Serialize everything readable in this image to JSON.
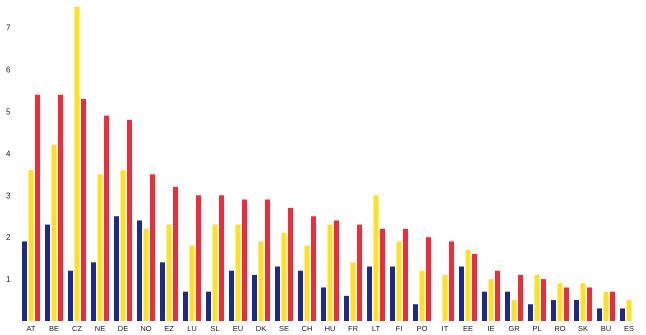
{
  "chart_data": {
    "type": "bar",
    "title": "",
    "xlabel": "",
    "ylabel": "",
    "ylim": [
      0,
      7.5
    ],
    "yticks": [
      1,
      2,
      3,
      4,
      5,
      6,
      7
    ],
    "grid": false,
    "categories": [
      "AT",
      "BE",
      "CZ",
      "NE",
      "DE",
      "NO",
      "EZ",
      "LU",
      "SL",
      "EU",
      "DK",
      "SE",
      "CH",
      "HU",
      "FR",
      "LT",
      "FI",
      "PO",
      "IT",
      "EE",
      "IE",
      "GR",
      "PL",
      "RO",
      "SK",
      "BU",
      "ES"
    ],
    "series": [
      {
        "color": "#1b2a8c",
        "values": [
          1.9,
          2.3,
          1.2,
          1.4,
          2.5,
          2.4,
          1.4,
          0.7,
          0.7,
          1.2,
          1.1,
          1.3,
          1.2,
          0.8,
          0.6,
          1.3,
          1.3,
          0.4,
          0.0,
          1.3,
          0.7,
          0.7,
          0.4,
          0.5,
          0.5,
          0.3,
          0.3
        ]
      },
      {
        "color": "#ffe21f",
        "values": [
          3.6,
          4.2,
          7.5,
          3.5,
          3.6,
          2.2,
          2.3,
          1.8,
          2.3,
          2.3,
          1.9,
          2.1,
          1.8,
          2.3,
          1.4,
          3.0,
          1.9,
          1.2,
          1.1,
          1.7,
          1.0,
          0.5,
          1.1,
          0.9,
          0.9,
          0.7,
          0.5
        ]
      },
      {
        "color": "#f02b3c",
        "values": [
          5.4,
          5.4,
          5.3,
          4.9,
          4.8,
          3.5,
          3.2,
          3.0,
          3.0,
          2.9,
          2.9,
          2.7,
          2.5,
          2.4,
          2.3,
          2.2,
          2.2,
          2.0,
          1.9,
          1.6,
          1.2,
          1.1,
          1.0,
          0.8,
          0.8,
          0.7,
          0.0
        ]
      }
    ]
  }
}
